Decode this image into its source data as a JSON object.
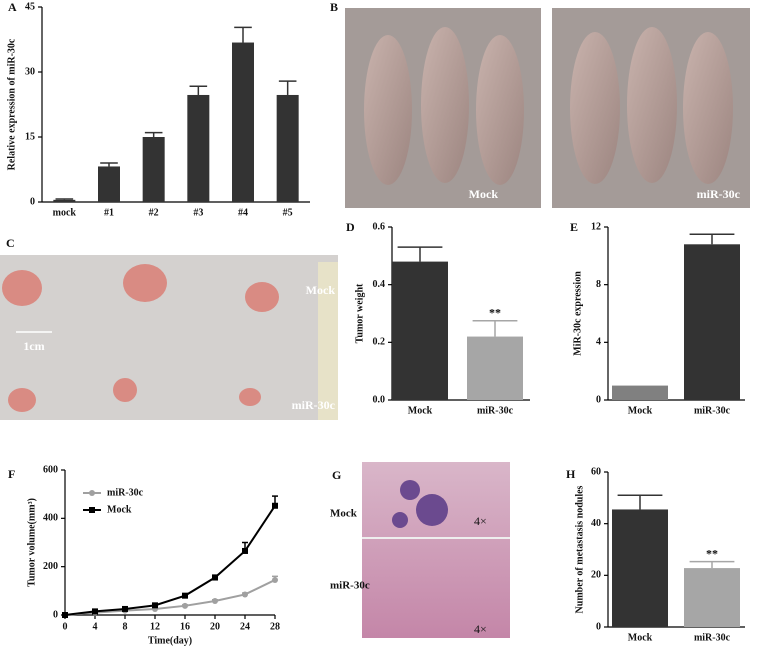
{
  "chart_data": [
    {
      "panel": "A",
      "type": "bar",
      "y_label": "Relative expression of miR-30c",
      "categories": [
        "mock",
        "#1",
        "#2",
        "#3",
        "#4",
        "#5"
      ],
      "values": [
        0.5,
        8.2,
        15,
        24.7,
        36.8,
        24.7
      ],
      "errors": [
        0.2,
        0.8,
        1,
        2,
        3.5,
        3.2
      ],
      "colors": [
        "#333333",
        "#333333",
        "#333333",
        "#333333",
        "#333333",
        "#333333"
      ],
      "ylim": [
        0,
        45
      ],
      "yticks": [
        0,
        15,
        30,
        45
      ]
    },
    {
      "panel": "D",
      "type": "bar",
      "y_label": "Tumor weight",
      "categories": [
        "Mock",
        "miR-30c"
      ],
      "values": [
        0.48,
        0.22
      ],
      "errors": [
        0.05,
        0.055
      ],
      "colors": [
        "#333333",
        "#a6a6a6"
      ],
      "annotations": [
        null,
        "**"
      ],
      "ylim": [
        0,
        0.6
      ],
      "yticks": [
        {
          "value": 0,
          "label": "0.0"
        },
        0.2,
        0.4,
        0.6
      ]
    },
    {
      "panel": "E",
      "type": "bar",
      "y_label": "MiR-30c expression",
      "categories": [
        "Mock",
        "miR-30c"
      ],
      "values": [
        1,
        10.8
      ],
      "errors": [
        0,
        0.7
      ],
      "colors": [
        "#808080",
        "#333333"
      ],
      "ylim": [
        0,
        12
      ],
      "yticks": [
        0,
        4,
        8,
        12
      ]
    },
    {
      "panel": "F",
      "type": "line",
      "y_label": "Tumor volume(mm³)",
      "x_label": "Time(day)",
      "x": [
        0,
        4,
        8,
        12,
        16,
        20,
        24,
        28
      ],
      "series": [
        {
          "name": "miR-30c",
          "color": "#a0a0a0",
          "marker": "circle",
          "values": [
            0,
            10,
            18,
            25,
            38,
            58,
            85,
            145
          ],
          "errors": [
            0,
            2,
            2,
            3,
            4,
            5,
            6,
            15
          ]
        },
        {
          "name": "Mock",
          "color": "#000000",
          "marker": "square",
          "values": [
            0,
            15,
            25,
            40,
            80,
            155,
            265,
            452
          ],
          "errors": [
            0,
            3,
            3,
            5,
            6,
            10,
            35,
            40
          ]
        }
      ],
      "legend": "upper left",
      "xlim": [
        0,
        28
      ],
      "xticks": [
        0,
        4,
        8,
        12,
        16,
        20,
        24,
        28
      ],
      "ylim": [
        0,
        600
      ],
      "yticks": [
        0,
        200,
        400,
        600
      ]
    },
    {
      "panel": "H",
      "type": "bar",
      "y_label": "Number of metastasis nodules",
      "categories": [
        "Mock",
        "miR-30c"
      ],
      "values": [
        45.5,
        22.8
      ],
      "errors": [
        5.5,
        2.5
      ],
      "colors": [
        "#333333",
        "#a6a6a6"
      ],
      "annotations": [
        null,
        "**"
      ],
      "ylim": [
        0,
        60
      ],
      "yticks": [
        0,
        20,
        40,
        60
      ]
    }
  ],
  "images": [
    {
      "panel": "B",
      "labels": [
        "Mock",
        "miR-30c"
      ]
    },
    {
      "panel": "C",
      "labels": [
        "Mock",
        "miR-30c",
        "1cm"
      ]
    },
    {
      "panel": "G",
      "labels": [
        "Mock",
        "miR-30c",
        "4×",
        "4×"
      ]
    }
  ]
}
